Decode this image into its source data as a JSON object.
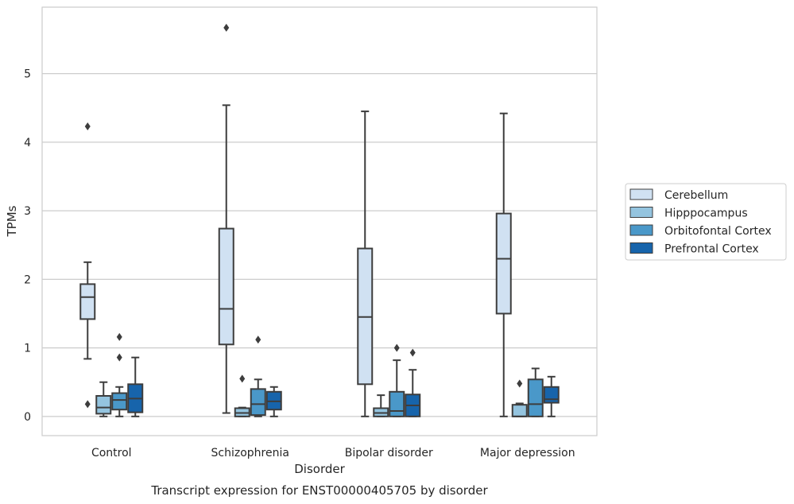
{
  "chart_data": {
    "type": "box",
    "title": "Transcript expression for ENST00000405705 by disorder",
    "xlabel": "Disorder",
    "ylabel": "TPMs",
    "ylim": [
      -0.28,
      5.97
    ],
    "yticks": [
      "0",
      "1",
      "2",
      "3",
      "4",
      "5"
    ],
    "grid": true,
    "legend_position": "right",
    "categories": [
      "Control",
      "Schizophrenia",
      "Bipolar disorder",
      "Major depression"
    ],
    "series": [
      {
        "name": "Cerebellum",
        "color": "#d0e1f2",
        "boxes": [
          {
            "whisker_low": 0.84,
            "q1": 1.42,
            "median": 1.74,
            "q3": 1.93,
            "whisker_high": 2.25,
            "outliers": [
              4.23,
              0.18
            ]
          },
          {
            "whisker_low": 0.05,
            "q1": 1.05,
            "median": 1.57,
            "q3": 2.74,
            "whisker_high": 4.54,
            "outliers": [
              5.67
            ]
          },
          {
            "whisker_low": 0.0,
            "q1": 0.47,
            "median": 1.45,
            "q3": 2.45,
            "whisker_high": 4.45,
            "outliers": []
          },
          {
            "whisker_low": 0.0,
            "q1": 1.5,
            "median": 2.3,
            "q3": 2.96,
            "whisker_high": 4.42,
            "outliers": []
          }
        ]
      },
      {
        "name": "Hipppocampus",
        "color": "#94c4df",
        "boxes": [
          {
            "whisker_low": 0.0,
            "q1": 0.04,
            "median": 0.13,
            "q3": 0.3,
            "whisker_high": 0.5,
            "outliers": []
          },
          {
            "whisker_low": 0.0,
            "q1": 0.0,
            "median": 0.05,
            "q3": 0.12,
            "whisker_high": 0.13,
            "outliers": [
              0.55
            ]
          },
          {
            "whisker_low": 0.0,
            "q1": 0.0,
            "median": 0.05,
            "q3": 0.12,
            "whisker_high": 0.31,
            "outliers": []
          },
          {
            "whisker_low": 0.0,
            "q1": 0.0,
            "median": 0.0,
            "q3": 0.17,
            "whisker_high": 0.19,
            "outliers": [
              0.48
            ]
          }
        ]
      },
      {
        "name": "Orbitofontal Cortex",
        "color": "#4a98c9",
        "boxes": [
          {
            "whisker_low": 0.0,
            "q1": 0.1,
            "median": 0.24,
            "q3": 0.34,
            "whisker_high": 0.43,
            "outliers": [
              1.16,
              0.86
            ]
          },
          {
            "whisker_low": 0.0,
            "q1": 0.02,
            "median": 0.18,
            "q3": 0.4,
            "whisker_high": 0.54,
            "outliers": [
              1.12
            ]
          },
          {
            "whisker_low": 0.0,
            "q1": 0.0,
            "median": 0.08,
            "q3": 0.36,
            "whisker_high": 0.82,
            "outliers": [
              1.0
            ]
          },
          {
            "whisker_low": 0.0,
            "q1": 0.0,
            "median": 0.18,
            "q3": 0.54,
            "whisker_high": 0.7,
            "outliers": []
          }
        ]
      },
      {
        "name": "Prefrontal Cortex",
        "color": "#1764ab",
        "boxes": [
          {
            "whisker_low": 0.0,
            "q1": 0.06,
            "median": 0.26,
            "q3": 0.47,
            "whisker_high": 0.86,
            "outliers": []
          },
          {
            "whisker_low": 0.0,
            "q1": 0.1,
            "median": 0.22,
            "q3": 0.36,
            "whisker_high": 0.43,
            "outliers": []
          },
          {
            "whisker_low": 0.0,
            "q1": 0.0,
            "median": 0.16,
            "q3": 0.32,
            "whisker_high": 0.68,
            "outliers": [
              0.93
            ]
          },
          {
            "whisker_low": 0.0,
            "q1": 0.2,
            "median": 0.25,
            "q3": 0.43,
            "whisker_high": 0.58,
            "outliers": []
          }
        ]
      }
    ]
  }
}
